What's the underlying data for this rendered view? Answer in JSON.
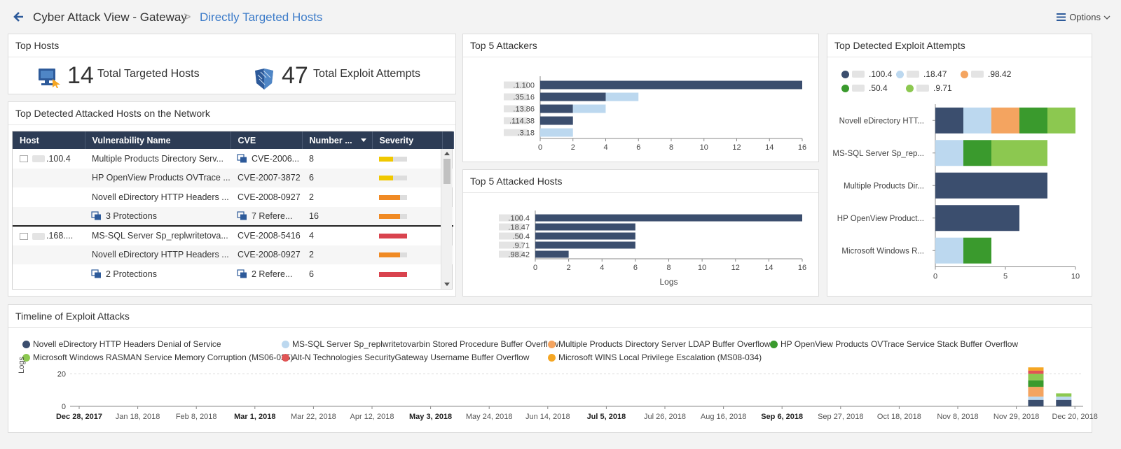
{
  "header": {
    "breadcrumb_parent": "Cyber Attack View - Gateway",
    "breadcrumb_separator": ">",
    "breadcrumb_current": "Directly Targeted Hosts",
    "options_label": "Options"
  },
  "top_hosts": {
    "title": "Top Hosts",
    "targeted_count": "14",
    "targeted_label": "Total Targeted Hosts",
    "exploit_count": "47",
    "exploit_label": "Total Exploit Attempts"
  },
  "attacked_table": {
    "title": "Top Detected Attacked Hosts on the Network",
    "columns": [
      "Host",
      "Vulnerability Name",
      "CVE",
      "Number ...",
      "Severity"
    ],
    "rows": [
      {
        "host": ".100.4",
        "vuln": "Multiple Products Directory Serv...",
        "cve": "CVE-2006...",
        "num": "8",
        "severity": "medium"
      },
      {
        "host": "",
        "vuln": "HP OpenView Products OVTrace ...",
        "cve": "CVE-2007-3872",
        "num": "6",
        "severity": "medium"
      },
      {
        "host": "",
        "vuln": "Novell eDirectory HTTP Headers ...",
        "cve": "CVE-2008-0927",
        "num": "2",
        "severity": "high"
      },
      {
        "host": "",
        "vuln": "3 Protections",
        "cve": "7 Refere...",
        "num": "16",
        "severity": "high"
      },
      {
        "host": ".168....",
        "vuln": "MS-SQL Server Sp_replwritetova...",
        "cve": "CVE-2008-5416",
        "num": "4",
        "severity": "critical"
      },
      {
        "host": "",
        "vuln": "Novell eDirectory HTTP Headers ...",
        "cve": "CVE-2008-0927",
        "num": "2",
        "severity": "high"
      },
      {
        "host": "",
        "vuln": "2 Protections",
        "cve": "2 Refere...",
        "num": "6",
        "severity": "critical"
      }
    ]
  },
  "colors": {
    "navy": "#3b4e6e",
    "lightblue": "#bcd8ef",
    "orange": "#f4a460",
    "green": "#3a9a2d",
    "lightgreen": "#8cc850",
    "red": "#e05555",
    "amber": "#f5a623",
    "sev_medium": "#f0c800",
    "sev_high": "#f08a24",
    "sev_critical": "#d9434e"
  },
  "chart_data": [
    {
      "type": "bar",
      "title": "Top 5 Attackers",
      "orientation": "horizontal",
      "categories": [
        ".1.100",
        ".35.16",
        ".13.86",
        ".114.38",
        ".3.18"
      ],
      "series": [
        {
          "color": "navy",
          "values": [
            16,
            4,
            2,
            2,
            0
          ]
        },
        {
          "color": "lightblue",
          "values": [
            0,
            2,
            2,
            0,
            2
          ]
        }
      ],
      "xlim": [
        0,
        16
      ],
      "xticks": [
        "0",
        "2",
        "4",
        "6",
        "8",
        "10",
        "12",
        "14",
        "16"
      ]
    },
    {
      "type": "bar",
      "title": "Top 5 Attacked Hosts",
      "orientation": "horizontal",
      "categories": [
        ".100.4",
        ".18.47",
        ".50.4",
        ".9.71",
        ".98.42"
      ],
      "series": [
        {
          "color": "navy",
          "values": [
            16,
            6,
            6,
            6,
            2
          ]
        }
      ],
      "xlim": [
        0,
        16
      ],
      "xticks": [
        "0",
        "2",
        "4",
        "6",
        "8",
        "10",
        "12",
        "14",
        "16"
      ],
      "xlabel": "Logs"
    },
    {
      "type": "bar",
      "title": "Top Detected Exploit Attempts",
      "orientation": "horizontal",
      "stacked": true,
      "legend": [
        ".100.4",
        ".18.47",
        ".98.42",
        ".50.4",
        ".9.71"
      ],
      "legend_colors": [
        "navy",
        "lightblue",
        "orange",
        "green",
        "lightgreen"
      ],
      "categories": [
        "Novell eDirectory HTT...",
        "MS-SQL Server Sp_rep...",
        "Multiple Products Dir...",
        "HP OpenView Product...",
        "Microsoft Windows R..."
      ],
      "series": [
        {
          "name": ".100.4",
          "values": [
            2,
            0,
            8,
            6,
            0
          ]
        },
        {
          "name": ".18.47",
          "values": [
            2,
            2,
            0,
            0,
            2
          ]
        },
        {
          "name": ".98.42",
          "values": [
            2,
            0,
            0,
            0,
            0
          ]
        },
        {
          "name": ".50.4",
          "values": [
            2,
            2,
            0,
            0,
            2
          ]
        },
        {
          "name": ".9.71",
          "values": [
            2,
            4,
            0,
            0,
            0
          ]
        }
      ],
      "xlim": [
        0,
        10
      ],
      "xticks": [
        "0",
        "5",
        "10"
      ]
    },
    {
      "type": "bar",
      "title": "Timeline of Exploit Attacks",
      "stacked": true,
      "ylabel": "Logs",
      "ylim": [
        0,
        28
      ],
      "yticks": [
        "0",
        "20"
      ],
      "xticks": [
        "Dec 28, 2017",
        "Jan 18, 2018",
        "Feb 8, 2018",
        "Mar 1, 2018",
        "Mar 22, 2018",
        "Apr 12, 2018",
        "May 3, 2018",
        "May 24, 2018",
        "Jun 14, 2018",
        "Jul 5, 2018",
        "Jul 26, 2018",
        "Aug 16, 2018",
        "Sep 6, 2018",
        "Sep 27, 2018",
        "Oct 18, 2018",
        "Nov 8, 2018",
        "Nov 29, 2018",
        "Dec 20, 2018"
      ],
      "bold_ticks": [
        "Dec 28, 2017",
        "Mar 1, 2018",
        "May 3, 2018",
        "Jul 5, 2018",
        "Sep 6, 2018"
      ],
      "legend": [
        {
          "name": "Novell eDirectory HTTP Headers Denial of Service",
          "color": "navy"
        },
        {
          "name": "MS-SQL Server Sp_replwritetovarbin Stored Procedure Buffer Overflow",
          "color": "lightblue"
        },
        {
          "name": "Multiple Products Directory Server LDAP Buffer Overflows",
          "color": "orange"
        },
        {
          "name": "HP OpenView Products OVTrace Service Stack Buffer Overflow",
          "color": "green"
        },
        {
          "name": "Microsoft Windows RASMAN Service Memory Corruption (MS06-025)",
          "color": "lightgreen"
        },
        {
          "name": "Alt-N Technologies SecurityGateway Username Buffer Overflow",
          "color": "red"
        },
        {
          "name": "Microsoft WINS Local Privilege Escalation (MS08-034)",
          "color": "amber"
        }
      ],
      "bars": [
        {
          "date": "Dec 6, 2018",
          "segments": [
            4,
            2,
            6,
            4,
            4,
            2,
            2
          ]
        },
        {
          "date": "Dec 16, 2018",
          "segments": [
            4,
            2,
            0,
            0,
            2,
            0,
            0
          ]
        }
      ]
    }
  ]
}
